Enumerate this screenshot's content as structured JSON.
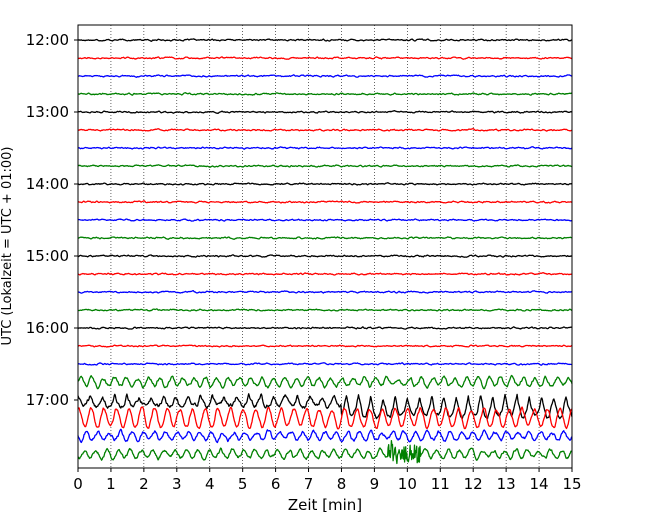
{
  "chart_data": {
    "type": "line",
    "title": "",
    "xlabel": "Zeit  [min]",
    "ylabel": "UTC (Lokalzeit = UTC + 01:00)",
    "xlim": [
      0,
      15
    ],
    "x_ticks": [
      0,
      1,
      2,
      3,
      4,
      5,
      6,
      7,
      8,
      9,
      10,
      11,
      12,
      13,
      14,
      15
    ],
    "y_ticks": [
      "12:00",
      "13:00",
      "14:00",
      "15:00",
      "16:00",
      "17:00"
    ],
    "x_grid": true,
    "trace_interval_min": 15,
    "trace_colors": [
      "#000000",
      "#ff0000",
      "#0000ff",
      "#008000"
    ],
    "traces": [
      {
        "start": "12:00",
        "color": "#000000",
        "activity": "quiet"
      },
      {
        "start": "12:15",
        "color": "#ff0000",
        "activity": "quiet"
      },
      {
        "start": "12:30",
        "color": "#0000ff",
        "activity": "quiet"
      },
      {
        "start": "12:45",
        "color": "#008000",
        "activity": "quiet"
      },
      {
        "start": "13:00",
        "color": "#000000",
        "activity": "quiet"
      },
      {
        "start": "13:15",
        "color": "#ff0000",
        "activity": "quiet"
      },
      {
        "start": "13:30",
        "color": "#0000ff",
        "activity": "quiet"
      },
      {
        "start": "13:45",
        "color": "#008000",
        "activity": "quiet"
      },
      {
        "start": "14:00",
        "color": "#000000",
        "activity": "quiet"
      },
      {
        "start": "14:15",
        "color": "#ff0000",
        "activity": "quiet"
      },
      {
        "start": "14:30",
        "color": "#0000ff",
        "activity": "quiet"
      },
      {
        "start": "14:45",
        "color": "#008000",
        "activity": "quiet"
      },
      {
        "start": "15:00",
        "color": "#000000",
        "activity": "quiet"
      },
      {
        "start": "15:15",
        "color": "#ff0000",
        "activity": "quiet"
      },
      {
        "start": "15:30",
        "color": "#0000ff",
        "activity": "quiet"
      },
      {
        "start": "15:45",
        "color": "#008000",
        "activity": "quiet"
      },
      {
        "start": "16:00",
        "color": "#000000",
        "activity": "quiet"
      },
      {
        "start": "16:15",
        "color": "#ff0000",
        "activity": "quiet"
      },
      {
        "start": "16:30",
        "color": "#0000ff",
        "activity": "quiet"
      },
      {
        "start": "16:45",
        "color": "#008000",
        "activity": "moderate"
      },
      {
        "start": "17:00",
        "color": "#000000",
        "activity": "strong"
      },
      {
        "start": "17:15",
        "color": "#ff0000",
        "activity": "strong"
      },
      {
        "start": "17:30",
        "color": "#0000ff",
        "activity": "moderate"
      },
      {
        "start": "17:45",
        "color": "#008000",
        "activity": "moderate"
      }
    ]
  }
}
